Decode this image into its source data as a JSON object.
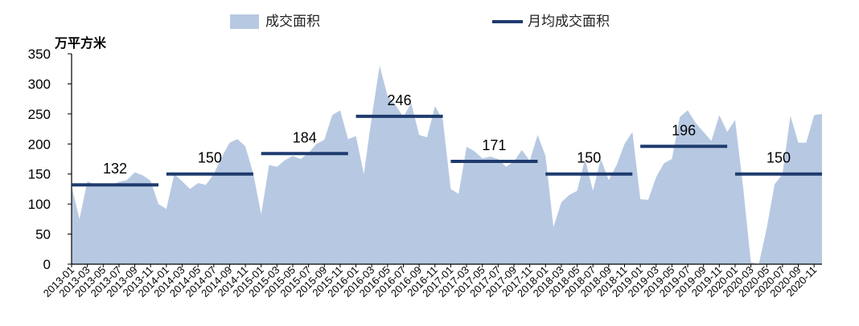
{
  "chart_data": {
    "type": "area",
    "ylabel": "万平方米",
    "ylim": [
      0,
      350
    ],
    "yticks": [
      "0",
      "50",
      "100",
      "150",
      "200",
      "250",
      "300",
      "350"
    ],
    "xticks": [
      "2013-01",
      "2013-03",
      "2013-05",
      "2013-07",
      "2013-09",
      "2013-11",
      "2014-01",
      "2014-03",
      "2014-05",
      "2014-07",
      "2014-09",
      "2014-11",
      "2015-01",
      "2015-03",
      "2015-05",
      "2015-07",
      "2015-09",
      "2015-11",
      "2016-01",
      "2016-03",
      "2016-05",
      "2016-07",
      "2016-09",
      "2016-11",
      "2017-01",
      "2017-03",
      "2017-05",
      "2017-07",
      "2017-09",
      "2017-11",
      "2018-01",
      "2018-03",
      "2018-05",
      "2018-07",
      "2018-09",
      "2018-11",
      "2019-01",
      "2019-03",
      "2019-05",
      "2019-07",
      "2019-09",
      "2019-11",
      "2020-01",
      "2020-03",
      "2020-05",
      "2020-07",
      "2020-09",
      "2020-11"
    ],
    "legend": {
      "area": "成交面积",
      "line": "月均成交面积"
    },
    "series": [
      {
        "name": "成交面积",
        "kind": "area",
        "color": "#b7c9e2",
        "values": [
          130,
          75,
          138,
          132,
          130,
          131,
          137,
          140,
          153,
          148,
          139,
          100,
          92,
          150,
          138,
          125,
          135,
          132,
          150,
          178,
          202,
          208,
          196,
          151,
          83,
          165,
          162,
          173,
          180,
          175,
          185,
          200,
          207,
          248,
          256,
          208,
          213,
          150,
          245,
          330,
          280,
          265,
          245,
          268,
          215,
          211,
          263,
          240,
          125,
          117,
          195,
          188,
          176,
          179,
          175,
          162,
          171,
          190,
          172,
          215,
          180,
          62,
          103,
          115,
          122,
          175,
          122,
          175,
          140,
          165,
          200,
          220,
          108,
          107,
          145,
          168,
          175,
          245,
          256,
          235,
          220,
          205,
          248,
          220,
          240,
          130,
          3,
          0,
          60,
          133,
          150,
          247,
          202,
          202,
          248,
          250
        ]
      },
      {
        "name": "月均成交面积",
        "kind": "annual-average",
        "color": "#1f3b6e",
        "segments": [
          {
            "label": "132",
            "value": 132,
            "from": "2013-01",
            "to": "2013-12"
          },
          {
            "label": "150",
            "value": 150,
            "from": "2014-01",
            "to": "2014-12"
          },
          {
            "label": "184",
            "value": 184,
            "from": "2015-01",
            "to": "2015-12"
          },
          {
            "label": "246",
            "value": 246,
            "from": "2016-01",
            "to": "2016-12"
          },
          {
            "label": "171",
            "value": 171,
            "from": "2017-01",
            "to": "2017-12"
          },
          {
            "label": "150",
            "value": 150,
            "from": "2018-01",
            "to": "2018-12"
          },
          {
            "label": "196",
            "value": 196,
            "from": "2019-01",
            "to": "2019-12"
          },
          {
            "label": "150",
            "value": 150,
            "from": "2020-01",
            "to": "2020-12"
          }
        ]
      }
    ],
    "grid": false,
    "legend_position": "top"
  }
}
